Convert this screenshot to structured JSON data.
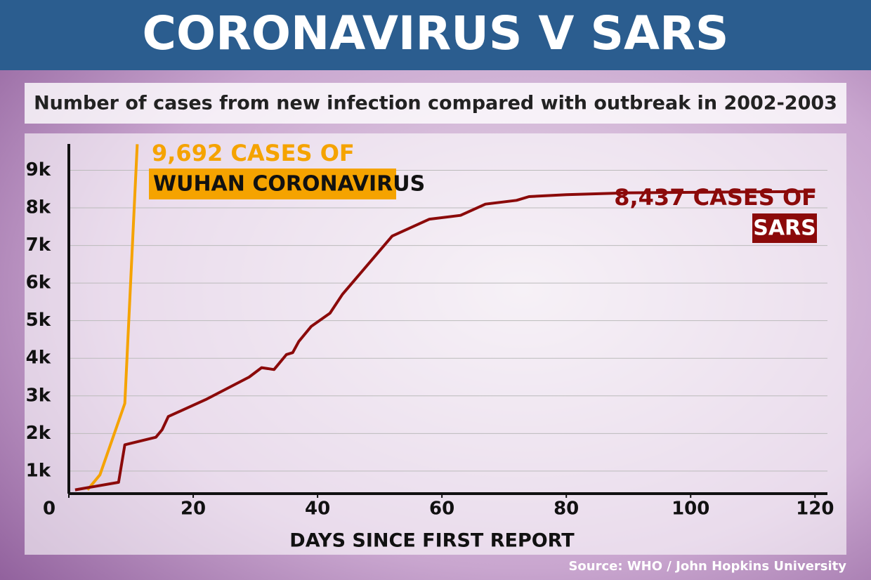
{
  "chart_data": {
    "type": "line",
    "title": "CORONAVIRUS V SARS",
    "subtitle": "Number of cases from new infection compared with outbreak in 2002-2003",
    "x_label": "DAYS SINCE FIRST REPORT",
    "source": "Source: WHO / John Hopkins University",
    "xlim": [
      0,
      122
    ],
    "ylim": [
      400,
      9700
    ],
    "xticks": [
      0,
      20,
      40,
      60,
      80,
      100,
      120
    ],
    "yticks": [
      {
        "value": 1000,
        "label": "1k"
      },
      {
        "value": 2000,
        "label": "2k"
      },
      {
        "value": 3000,
        "label": "3k"
      },
      {
        "value": 4000,
        "label": "4k"
      },
      {
        "value": 5000,
        "label": "5k"
      },
      {
        "value": 6000,
        "label": "6k"
      },
      {
        "value": 7000,
        "label": "7k"
      },
      {
        "value": 8000,
        "label": "8k"
      },
      {
        "value": 9000,
        "label": "9k"
      }
    ],
    "grid": true,
    "series": [
      {
        "name": "WUHAN CORONAVIRUS",
        "color": "#f5a300",
        "x": [
          3,
          5,
          9,
          11
        ],
        "values": [
          500,
          900,
          2800,
          9692
        ]
      },
      {
        "name": "SARS",
        "color": "#8b0a0a",
        "x": [
          1,
          8,
          9,
          14,
          15,
          16,
          22,
          29,
          31,
          33,
          35,
          36,
          37,
          39,
          42,
          44,
          52,
          58,
          63,
          67,
          72,
          74,
          80,
          90,
          120
        ],
        "values": [
          500,
          700,
          1700,
          1900,
          2100,
          2450,
          2900,
          3500,
          3750,
          3700,
          4100,
          4150,
          4450,
          4850,
          5200,
          5700,
          7250,
          7700,
          7800,
          8100,
          8200,
          8300,
          8350,
          8400,
          8437
        ]
      }
    ],
    "annotations": [
      {
        "line1": "9,692 CASES OF",
        "line2": "WUHAN CORONAVIRUS"
      },
      {
        "line1": "8,437 CASES OF",
        "line2": "SARS"
      }
    ]
  }
}
